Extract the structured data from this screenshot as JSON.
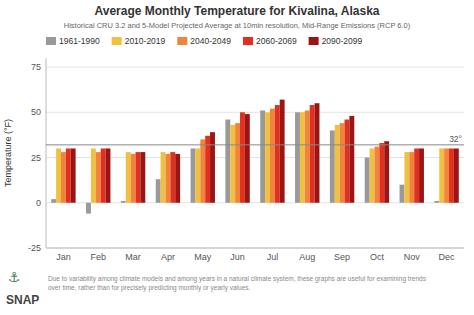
{
  "chart_data": {
    "type": "bar",
    "title": "Average Monthly Temperature for Kivalina, Alaska",
    "subtitle": "Historical CRU 3.2 and 5-Model Projected Average at 10min resolution, Mid-Range Emissions (RCP 6.0)",
    "y_label": "Temperature (°F)",
    "categories": [
      "Jan",
      "Feb",
      "Mar",
      "Apr",
      "May",
      "Jun",
      "Jul",
      "Aug",
      "Sep",
      "Oct",
      "Nov",
      "Dec"
    ],
    "series": [
      {
        "name": "1961-1990",
        "color": "#999999",
        "values": [
          2,
          -6,
          1,
          13,
          30,
          46,
          51,
          50,
          40,
          25,
          10,
          1
        ]
      },
      {
        "name": "2010-2019",
        "color": "#f0c040",
        "values": [
          30,
          30,
          28,
          28,
          30,
          43,
          50,
          50,
          43,
          30,
          28,
          30
        ]
      },
      {
        "name": "2040-2049",
        "color": "#f0843c",
        "values": [
          28,
          28,
          27,
          27,
          35,
          44,
          52,
          51,
          44,
          31,
          28,
          30
        ]
      },
      {
        "name": "2060-2069",
        "color": "#e03020",
        "values": [
          30,
          30,
          28,
          28,
          37,
          50,
          54,
          54,
          46,
          33,
          30,
          30
        ]
      },
      {
        "name": "2090-2099",
        "color": "#9b1515",
        "values": [
          30,
          30,
          28,
          27,
          39,
          49,
          57,
          55,
          48,
          34,
          30,
          30
        ]
      }
    ],
    "ylim": [
      -25,
      80
    ],
    "yticks": [
      -25,
      0,
      25,
      50,
      75
    ],
    "grid": true,
    "legend": "upper left",
    "annotations": [
      {
        "text": "32°",
        "y": 32
      },
      {
        "text": "⚓"
      },
      {
        "text": "SNAP"
      },
      {
        "text": "Due to variability among climate models and among years in a natural climate system, these graphs are useful for examining trends\nover time, rather than for precisely predicting monthly or yearly values."
      }
    ]
  }
}
